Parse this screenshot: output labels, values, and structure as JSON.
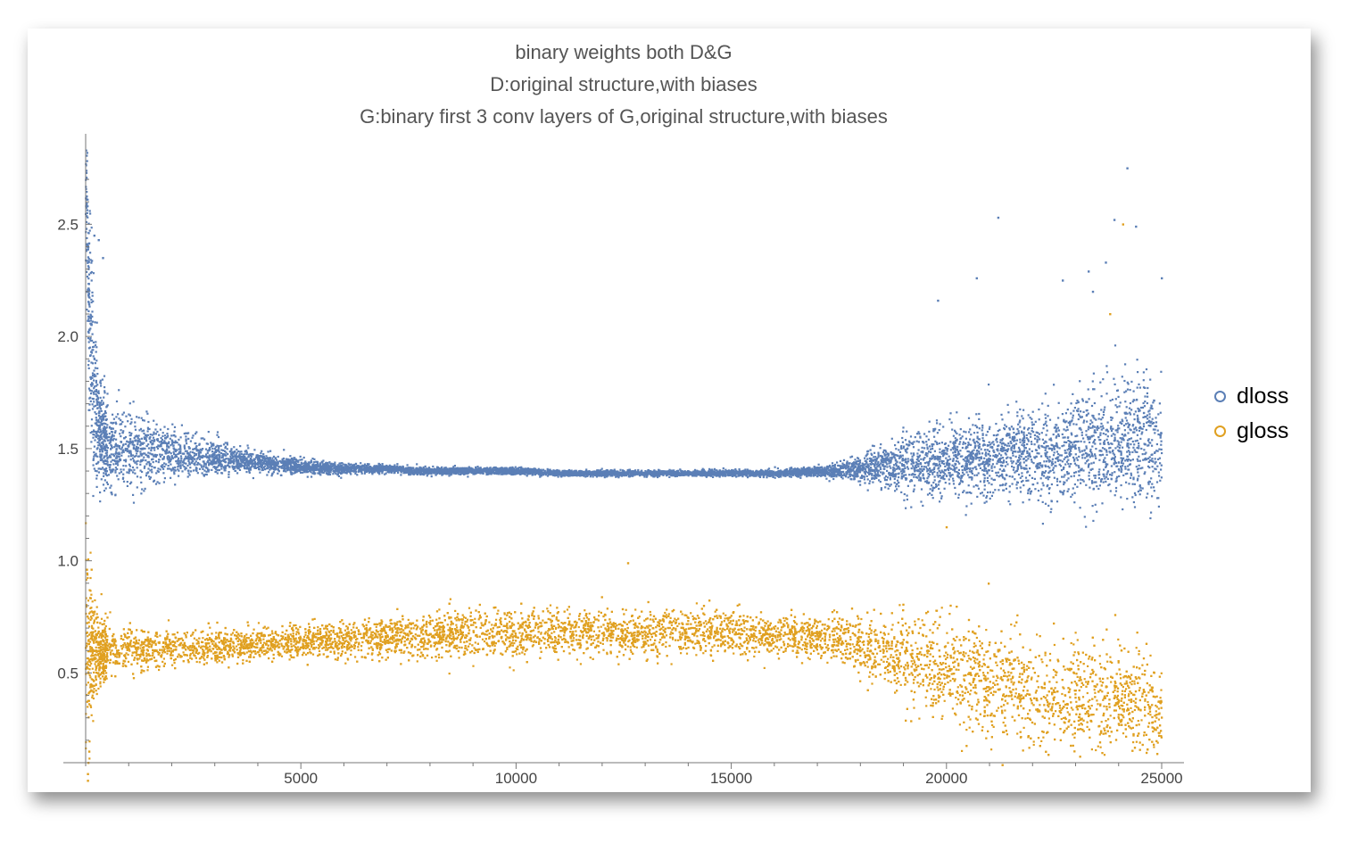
{
  "chart_data": {
    "type": "scatter",
    "title": [
      "binary weights both D&G",
      "D:original structure,with biases",
      "G:binary first 3 conv layers of G,original structure,with biases"
    ],
    "xlabel": "",
    "ylabel": "",
    "xlim": [
      -500,
      25700
    ],
    "ylim": [
      0.0,
      2.8
    ],
    "xticks": [
      5000,
      10000,
      15000,
      20000,
      25000
    ],
    "xtick_labels": [
      "5000",
      "10000",
      "15000",
      "20000",
      "25000"
    ],
    "yticks": [
      0.5,
      1.0,
      1.5,
      2.0,
      2.5
    ],
    "ytick_labels": [
      "0.5",
      "1.0",
      "1.5",
      "2.0",
      "2.5"
    ],
    "legend_position": "right",
    "grid": false,
    "series": [
      {
        "name": "dloss",
        "color": "#5b7fb6",
        "x": [
          0,
          100,
          200,
          300,
          500,
          700,
          1000,
          1500,
          2000,
          2500,
          3000,
          3500,
          4000,
          5000,
          6000,
          7000,
          8000,
          9000,
          10000,
          11000,
          12000,
          13000,
          14000,
          15000,
          16000,
          17000,
          17500,
          18000,
          18500,
          19000,
          19500,
          20000,
          20500,
          21000,
          21500,
          22000,
          22500,
          23000,
          23500,
          24000,
          24500,
          25000
        ],
        "y": [
          2.7,
          2.0,
          1.75,
          1.6,
          1.5,
          1.5,
          1.5,
          1.49,
          1.48,
          1.47,
          1.46,
          1.45,
          1.44,
          1.42,
          1.41,
          1.41,
          1.4,
          1.4,
          1.4,
          1.39,
          1.39,
          1.39,
          1.39,
          1.39,
          1.39,
          1.4,
          1.4,
          1.41,
          1.42,
          1.43,
          1.44,
          1.44,
          1.45,
          1.46,
          1.47,
          1.48,
          1.49,
          1.5,
          1.51,
          1.52,
          1.53,
          1.54
        ],
        "spread": [
          0.15,
          0.3,
          0.2,
          0.14,
          0.1,
          0.1,
          0.09,
          0.08,
          0.065,
          0.05,
          0.04,
          0.03,
          0.025,
          0.018,
          0.013,
          0.01,
          0.009,
          0.008,
          0.008,
          0.007,
          0.007,
          0.007,
          0.007,
          0.007,
          0.008,
          0.011,
          0.018,
          0.03,
          0.05,
          0.07,
          0.08,
          0.085,
          0.09,
          0.095,
          0.1,
          0.11,
          0.12,
          0.13,
          0.14,
          0.15,
          0.15,
          0.16
        ],
        "outliers": [
          [
            21200,
            2.53
          ],
          [
            24200,
            2.75
          ],
          [
            23900,
            2.52
          ],
          [
            24400,
            2.49
          ],
          [
            20700,
            2.26
          ],
          [
            22700,
            2.25
          ],
          [
            23300,
            2.29
          ],
          [
            23700,
            2.33
          ],
          [
            19800,
            2.16
          ],
          [
            25000,
            2.26
          ],
          [
            23400,
            2.2
          ],
          [
            200,
            2.45
          ],
          [
            300,
            2.43
          ],
          [
            400,
            2.35
          ]
        ]
      },
      {
        "name": "gloss",
        "color": "#e0a020",
        "x": [
          0,
          100,
          200,
          300,
          500,
          700,
          1000,
          1500,
          2000,
          2500,
          3000,
          3500,
          4000,
          5000,
          6000,
          7000,
          8000,
          9000,
          10000,
          11000,
          12000,
          13000,
          14000,
          15000,
          16000,
          17000,
          17500,
          18000,
          18500,
          19000,
          19500,
          20000,
          20500,
          21000,
          21500,
          22000,
          22500,
          23000,
          23500,
          24000,
          24500,
          25000
        ],
        "y": [
          0.6,
          0.58,
          0.6,
          0.6,
          0.6,
          0.6,
          0.61,
          0.61,
          0.61,
          0.61,
          0.62,
          0.62,
          0.63,
          0.64,
          0.65,
          0.66,
          0.67,
          0.68,
          0.68,
          0.68,
          0.68,
          0.68,
          0.68,
          0.68,
          0.67,
          0.66,
          0.65,
          0.63,
          0.6,
          0.57,
          0.54,
          0.5,
          0.47,
          0.45,
          0.43,
          0.41,
          0.4,
          0.39,
          0.38,
          0.37,
          0.36,
          0.35
        ],
        "spread": [
          0.3,
          0.2,
          0.12,
          0.08,
          0.06,
          0.055,
          0.05,
          0.045,
          0.04,
          0.04,
          0.04,
          0.04,
          0.04,
          0.04,
          0.045,
          0.05,
          0.05,
          0.055,
          0.055,
          0.055,
          0.055,
          0.055,
          0.055,
          0.05,
          0.05,
          0.05,
          0.055,
          0.07,
          0.08,
          0.1,
          0.11,
          0.12,
          0.13,
          0.13,
          0.13,
          0.13,
          0.13,
          0.13,
          0.13,
          0.13,
          0.13,
          0.13
        ],
        "outliers": [
          [
            50,
            0.02
          ],
          [
            50,
            0.05
          ],
          [
            60,
            0.1
          ],
          [
            80,
            0.15
          ],
          [
            12600,
            0.99
          ],
          [
            21300,
            0.09
          ],
          [
            24100,
            2.5
          ],
          [
            23800,
            2.1
          ],
          [
            20000,
            1.15
          ]
        ]
      }
    ]
  }
}
